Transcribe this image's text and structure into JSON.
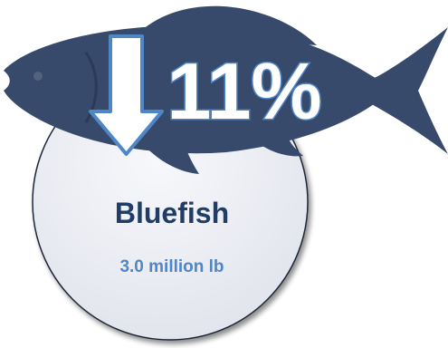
{
  "infographic": {
    "change_percent": "11%",
    "change_direction": "down",
    "species": "Bluefish",
    "landings": "3.0 million lb"
  },
  "colors": {
    "fish_silhouette": "#374a6b",
    "circle_fill": "#e9ebf2",
    "circle_stroke": "#1e2838",
    "arrow_fill": "#ffffff",
    "arrow_stroke": "#4f86c6",
    "percent_fill": "#ffffff",
    "percent_stroke": "#4f86c6",
    "species_text": "#1f3d66",
    "landings_text": "#4f86c6"
  },
  "icons": {
    "fish": "fish-silhouette-icon",
    "arrow": "down-arrow-icon"
  }
}
